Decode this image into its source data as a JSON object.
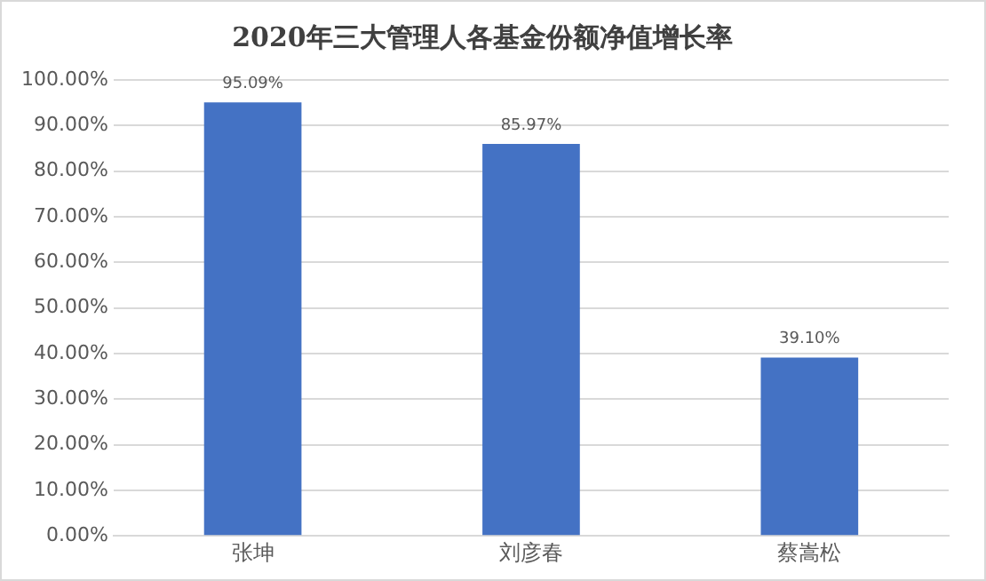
{
  "chart_data": {
    "type": "bar",
    "title": "2020年三大管理人各基金份额净值增长率",
    "categories": [
      "张坤",
      "刘彦春",
      "蔡嵩松"
    ],
    "values": [
      95.09,
      85.97,
      39.1
    ],
    "value_labels": [
      "95.09%",
      "85.97%",
      "39.10%"
    ],
    "color": "#4472c4",
    "ylim": [
      0,
      100
    ],
    "yticks": [
      {
        "value": 0,
        "label": "0.00%"
      },
      {
        "value": 10,
        "label": "10.00%"
      },
      {
        "value": 20,
        "label": "20.00%"
      },
      {
        "value": 30,
        "label": "30.00%"
      },
      {
        "value": 40,
        "label": "40.00%"
      },
      {
        "value": 50,
        "label": "50.00%"
      },
      {
        "value": 60,
        "label": "60.00%"
      },
      {
        "value": 70,
        "label": "70.00%"
      },
      {
        "value": 80,
        "label": "80.00%"
      },
      {
        "value": 90,
        "label": "90.00%"
      },
      {
        "value": 100,
        "label": "100.00%"
      }
    ],
    "grid": "y"
  }
}
